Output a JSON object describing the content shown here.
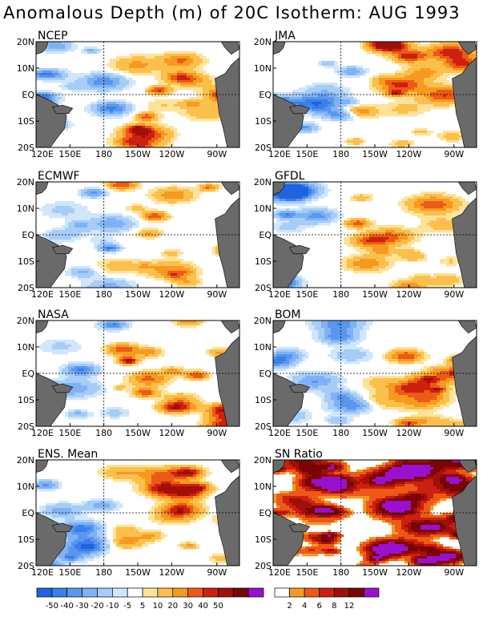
{
  "title": "Anomalous Depth (m) of 20C Isotherm: AUG 1993",
  "lat_labels": [
    "20N",
    "10N",
    "EQ",
    "10S",
    "20S"
  ],
  "lon_labels": [
    "120E",
    "150E",
    "180",
    "150W",
    "120W",
    "90W"
  ],
  "panels": [
    {
      "label": "NCEP",
      "type": "anomaly"
    },
    {
      "label": "JMA",
      "type": "anomaly"
    },
    {
      "label": "ECMWF",
      "type": "anomaly"
    },
    {
      "label": "GFDL",
      "type": "anomaly"
    },
    {
      "label": "NASA",
      "type": "anomaly"
    },
    {
      "label": "BOM",
      "type": "anomaly"
    },
    {
      "label": "ENS. Mean",
      "type": "anomaly"
    },
    {
      "label": "SN Ratio",
      "type": "snratio"
    }
  ],
  "colorbar_anomaly": {
    "labels": [
      "-50",
      "-40",
      "-30",
      "-20",
      "-10",
      "-5",
      "5",
      "10",
      "20",
      "30",
      "40",
      "50"
    ],
    "colors": [
      "#1e64e0",
      "#3a7ee8",
      "#5a96ee",
      "#7eb2f4",
      "#a6ccf8",
      "#cfe6fb",
      "#ffffff",
      "#fde39a",
      "#fbbf4c",
      "#f59a1f",
      "#ec5a16",
      "#cc2010",
      "#a01008",
      "#7a0404",
      "#9a10d0"
    ]
  },
  "colorbar_sn": {
    "labels": [
      "2",
      "4",
      "6",
      "8",
      "12"
    ],
    "colors": [
      "#ffffff",
      "#f59a1f",
      "#ec5a16",
      "#cc2010",
      "#a01008",
      "#7a0404",
      "#9a10d0"
    ]
  }
}
